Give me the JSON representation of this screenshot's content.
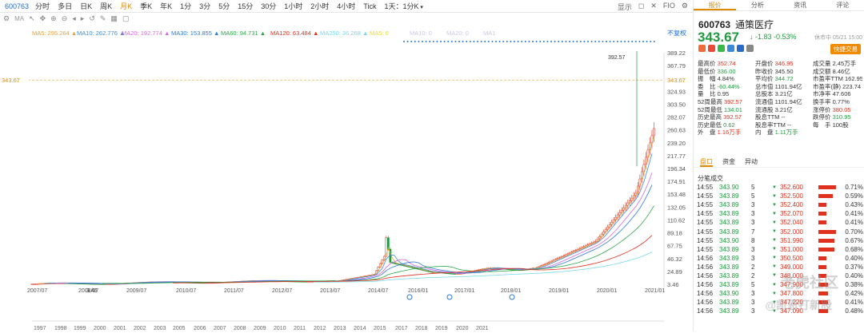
{
  "topbar": {
    "code": "600763",
    "periods": [
      "分时",
      "多日",
      "日K",
      "周K",
      "月K",
      "季K",
      "年K",
      "1分",
      "3分",
      "5分",
      "15分",
      "30分",
      "1小时",
      "2小时",
      "4小时",
      "Tick",
      "1天：1分K"
    ],
    "active_period": "月K",
    "right": [
      "显示",
      "◻",
      "✕",
      "FIO",
      "⚙"
    ]
  },
  "toolbar": {
    "ma_label": "MA",
    "icons": [
      "gear-icon",
      "pointer-icon",
      "move-icon",
      "zoom-in-icon",
      "zoom-out-icon",
      "prev-icon",
      "next-icon",
      "restore-icon",
      "draw-icon",
      "layout-icon",
      "window-icon"
    ]
  },
  "ma_legend": [
    {
      "text": "MA5: 295.264 ▲",
      "color": "#e8a23a"
    },
    {
      "text": "MA10: 262.776 ▲",
      "color": "#3a8fd8"
    },
    {
      "text": "MA20: 192.774 ▲",
      "color": "#d86ad8"
    },
    {
      "text": "MA30: 153.855 ▲",
      "color": "#2a7ad8"
    },
    {
      "text": "MA60: 94.731 ▲",
      "color": "#2aa84a"
    },
    {
      "text": "MA120: 63.484 ▲",
      "color": "#e0301e"
    },
    {
      "text": "MA250: 36.268 ▲",
      "color": "#7ad8e8"
    },
    {
      "text": "MA5: 0",
      "color": "#e8d83a"
    },
    {
      "text": "MA10: 0",
      "color": "#c8c8e8"
    },
    {
      "text": "MA20: 0",
      "color": "#c8c8e8"
    },
    {
      "text": "MA1",
      "color": "#c8c8e8"
    }
  ],
  "fq_label": "不复权",
  "chart_data": {
    "type": "candlestick",
    "current_price_line": 343.67,
    "high_annot": "392.57",
    "low_annot": "3.46",
    "y_ticks": [
      "389.22",
      "367.79",
      "343.67",
      "324.93",
      "303.50",
      "282.07",
      "260.63",
      "239.20",
      "217.77",
      "196.34",
      "174.91",
      "153.48",
      "132.05",
      "110.62",
      "89.18",
      "67.75",
      "46.32",
      "24.89",
      "3.46"
    ],
    "x_ticks": [
      "2007/07",
      "2008/07",
      "2009/07",
      "2010/07",
      "2011/07",
      "2012/07",
      "2013/07",
      "2014/07",
      "2016/01",
      "2017/01",
      "2018/01",
      "2019/01",
      "2020/01",
      "2021/01"
    ],
    "year_ticks": [
      "1997",
      "1998",
      "1999",
      "2000",
      "2001",
      "2002",
      "2003",
      "2005",
      "2006",
      "2007",
      "2008",
      "2009",
      "2010",
      "2011",
      "2012",
      "2013",
      "2014",
      "2015",
      "2017",
      "2018",
      "2019",
      "2020",
      "2021"
    ]
  },
  "right": {
    "tabs": [
      "报价",
      "分析",
      "资讯",
      "评论"
    ],
    "active_tab": "报价",
    "code": "600763",
    "name": "通策医疗",
    "price": "343.67",
    "change": "↓ -1.83 -0.53%",
    "time": "休市中 05/21 15:00",
    "quick": "快捷交易",
    "stats": [
      [
        {
          "l": "最高价",
          "v": "352.74",
          "c": "up"
        },
        {
          "l": "开盘价",
          "v": "346.95",
          "c": "up"
        },
        {
          "l": "成交量",
          "v": "2.45万手",
          "c": ""
        }
      ],
      [
        {
          "l": "最低价",
          "v": "336.00",
          "c": "dn"
        },
        {
          "l": "昨收价",
          "v": "345.50",
          "c": ""
        },
        {
          "l": "成交额",
          "v": "8.46亿",
          "c": ""
        }
      ],
      [
        {
          "l": "振　幅",
          "v": "4.84%",
          "c": ""
        },
        {
          "l": "平均价",
          "v": "344.72",
          "c": "dn"
        },
        {
          "l": "市盈率TTM",
          "v": "162.95",
          "c": ""
        }
      ],
      [
        {
          "l": "委　比",
          "v": "-60.44%",
          "c": "dn"
        },
        {
          "l": "总市值",
          "v": "1101.94亿",
          "c": ""
        },
        {
          "l": "市盈率(静)",
          "v": "223.74",
          "c": ""
        }
      ],
      [
        {
          "l": "量　比",
          "v": "0.95",
          "c": ""
        },
        {
          "l": "总股本",
          "v": "3.21亿",
          "c": ""
        },
        {
          "l": "市净率",
          "v": "47.606",
          "c": ""
        }
      ],
      [
        {
          "l": "52周最高",
          "v": "392.57",
          "c": "up"
        },
        {
          "l": "流通值",
          "v": "1101.94亿",
          "c": ""
        },
        {
          "l": "换手率",
          "v": "0.77%",
          "c": ""
        }
      ],
      [
        {
          "l": "52周最低",
          "v": "134.01",
          "c": "dn"
        },
        {
          "l": "流通股",
          "v": "3.21亿",
          "c": ""
        },
        {
          "l": "涨停价",
          "v": "380.05",
          "c": "up"
        }
      ],
      [
        {
          "l": "历史最高",
          "v": "392.57",
          "c": "up"
        },
        {
          "l": "股息TTM",
          "v": "--",
          "c": ""
        },
        {
          "l": "跌停价",
          "v": "310.95",
          "c": "dn"
        }
      ],
      [
        {
          "l": "历史最低",
          "v": "0.62",
          "c": "dn"
        },
        {
          "l": "股息率TTM",
          "v": "--",
          "c": ""
        },
        {
          "l": "每　手",
          "v": "100股",
          "c": ""
        }
      ],
      [
        {
          "l": "外　盘",
          "v": "1.16万手",
          "c": "up"
        },
        {
          "l": "内　盘",
          "v": "1.11万手",
          "c": "dn"
        },
        {
          "l": "",
          "v": "",
          "c": ""
        }
      ]
    ],
    "subtabs": [
      "盘口",
      "资金",
      "异动"
    ],
    "active_subtab": "盘口",
    "ticks_header": "分笔成交",
    "ticks": [
      {
        "t": "14:55",
        "p": "343.90",
        "q": "5",
        "d": "▼",
        "s": "352.600",
        "bar": 22,
        "pct": "0.71%"
      },
      {
        "t": "14:55",
        "p": "343.89",
        "q": "5",
        "d": "▼",
        "s": "352.500",
        "bar": 18,
        "pct": "0.59%"
      },
      {
        "t": "14:55",
        "p": "343.89",
        "q": "3",
        "d": "▼",
        "s": "352.400",
        "bar": 10,
        "pct": "0.43%"
      },
      {
        "t": "14:55",
        "p": "343.89",
        "q": "3",
        "d": "▼",
        "s": "352.070",
        "bar": 10,
        "pct": "0.41%"
      },
      {
        "t": "14:55",
        "p": "343.89",
        "q": "3",
        "d": "▼",
        "s": "352.040",
        "bar": 10,
        "pct": "0.41%"
      },
      {
        "t": "14:55",
        "p": "343.89",
        "q": "7",
        "d": "▼",
        "s": "352.000",
        "bar": 22,
        "pct": "0.70%"
      },
      {
        "t": "14:55",
        "p": "343.90",
        "q": "8",
        "d": "▼",
        "s": "351.990",
        "bar": 20,
        "pct": "0.67%"
      },
      {
        "t": "14:55",
        "p": "343.89",
        "q": "3",
        "d": "▼",
        "s": "351.000",
        "bar": 20,
        "pct": "0.68%"
      },
      {
        "t": "14:56",
        "p": "343.89",
        "q": "3",
        "d": "▼",
        "s": "350.500",
        "bar": 10,
        "pct": "0.40%"
      },
      {
        "t": "14:56",
        "p": "343.89",
        "q": "2",
        "d": "▼",
        "s": "349.000",
        "bar": 10,
        "pct": "0.37%"
      },
      {
        "t": "14:56",
        "p": "343.89",
        "q": "2",
        "d": "▼",
        "s": "348.000",
        "bar": 10,
        "pct": "0.40%"
      },
      {
        "t": "14:56",
        "p": "343.89",
        "q": "5",
        "d": "▼",
        "s": "347.900",
        "bar": 12,
        "pct": "0.38%"
      },
      {
        "t": "14:56",
        "p": "343.90",
        "q": "3",
        "d": "▼",
        "s": "347.800",
        "bar": 12,
        "pct": "0.42%"
      },
      {
        "t": "14:56",
        "p": "343.89",
        "q": "3",
        "d": "▼",
        "s": "347.220",
        "bar": 12,
        "pct": "0.41%"
      },
      {
        "t": "14:56",
        "p": "343.89",
        "q": "3",
        "d": "▼",
        "s": "347.090",
        "bar": 12,
        "pct": "0.48%"
      }
    ],
    "watermark1": "老虎社区",
    "watermark2": "@凯恩打新股"
  }
}
